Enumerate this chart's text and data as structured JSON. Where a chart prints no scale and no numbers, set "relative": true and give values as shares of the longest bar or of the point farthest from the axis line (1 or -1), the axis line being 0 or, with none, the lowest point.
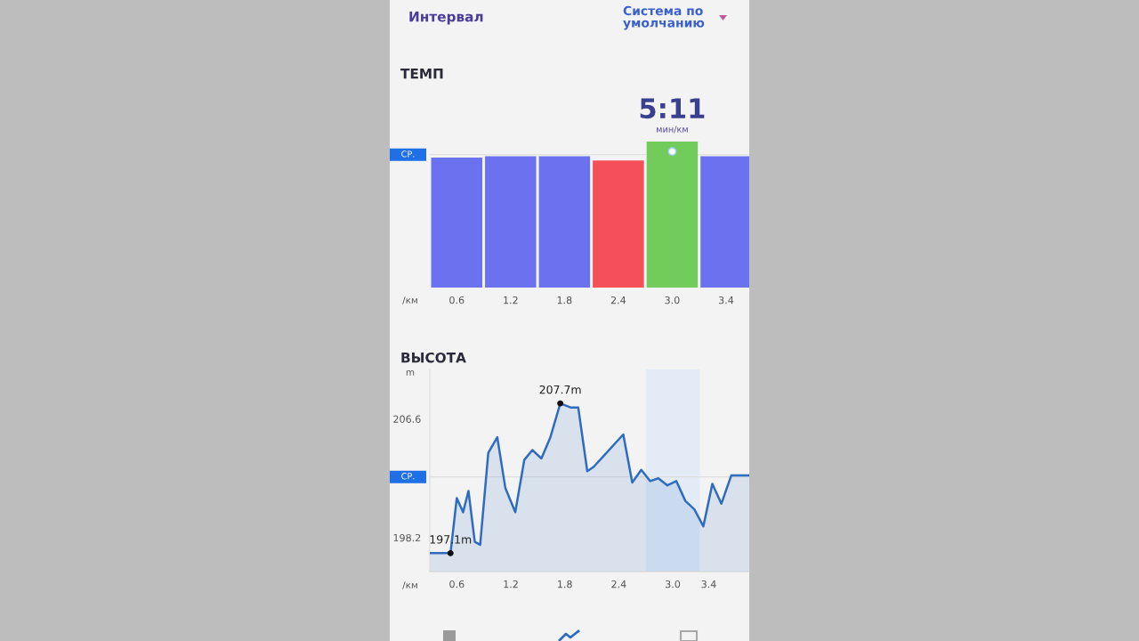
{
  "chart_data": [
    {
      "type": "bar",
      "title": "ТЕМП",
      "xlabel": "/км",
      "categories": [
        "0.6",
        "1.2",
        "1.8",
        "2.4",
        "3.0",
        "3.4"
      ],
      "values": [
        0.89,
        0.9,
        0.9,
        0.87,
        1,
        0.9
      ],
      "colors": [
        "#6a72f0",
        "#6a72f0",
        "#6a72f0",
        "#f5505a",
        "#72cc5c",
        "#6a72f0"
      ],
      "relative": true,
      "ref_lines": [
        {
          "axis": "y",
          "value": 0.91,
          "label": "СР."
        }
      ],
      "annotations": [
        "Интервал",
        "Система по умолчанию",
        {
          "text": "5:11",
          "x": "3.0",
          "y": 1
        },
        {
          "text": "мин/км",
          "x": "3.0",
          "y": 1
        }
      ]
    },
    {
      "type": "area",
      "title": "ВЫСОТА",
      "xlabel": "/км",
      "ylabel": "m",
      "x": [
        0.3,
        0.53,
        0.6,
        0.67,
        0.73,
        0.8,
        0.86,
        0.95,
        1.05,
        1.14,
        1.25,
        1.35,
        1.44,
        1.54,
        1.64,
        1.75,
        1.87,
        1.95,
        2.05,
        2.12,
        2.45,
        2.55,
        2.65,
        2.75,
        2.84,
        2.94,
        3.04,
        3.14,
        3.24,
        3.34,
        3.44,
        3.54,
        3.65,
        3.85
      ],
      "series": [
        {
          "color": "#2f6cc0",
          "values": [
            197.1,
            197.1,
            201.0,
            200.0,
            201.5,
            197.9,
            197.7,
            204.2,
            205.3,
            201.7,
            200.0,
            203.7,
            204.4,
            203.8,
            205.3,
            207.7,
            207.4,
            207.4,
            202.9,
            203.2,
            205.5,
            202.1,
            203.0,
            202.2,
            202.4,
            201.9,
            202.2,
            200.8,
            200.2,
            199.0,
            202.0,
            200.6,
            202.6,
            202.6
          ]
        }
      ],
      "xlim": [
        0.3,
        3.85
      ],
      "xticks": [
        0.6,
        1.2,
        1.8,
        2.4,
        {
          "value": 3,
          "label": "3.0"
        },
        3.4
      ],
      "ylim": [
        195.8,
        210.1
      ],
      "yticks": [
        198.2,
        206.6
      ],
      "ref_lines": [
        {
          "axis": "y",
          "value": 202.5,
          "label": "СР."
        }
      ],
      "bands": [
        {
          "axis": "x",
          "from": 2.7,
          "to": 3.3,
          "color": "#e3ecf6"
        }
      ],
      "annotations": [
        {
          "text": "207.7m",
          "x": 1.75,
          "y": 207.7
        },
        {
          "text": "197.1m",
          "x": 0.53,
          "y": 197.1
        }
      ]
    }
  ]
}
